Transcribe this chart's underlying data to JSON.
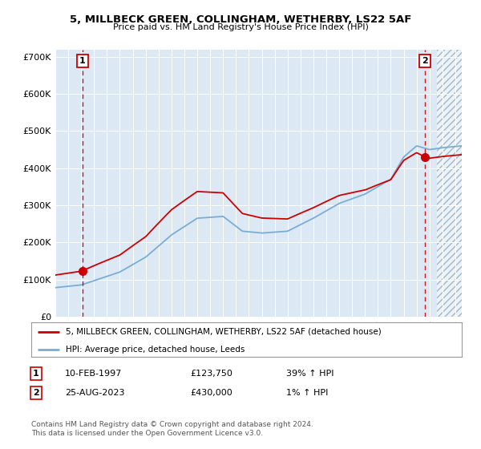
{
  "title": "5, MILLBECK GREEN, COLLINGHAM, WETHERBY, LS22 5AF",
  "subtitle": "Price paid vs. HM Land Registry's House Price Index (HPI)",
  "bg_color": "#dce9f5",
  "red_line_color": "#cc0000",
  "blue_line_color": "#7aadd4",
  "sale1_date": 1997.11,
  "sale1_price": 123750,
  "sale1_label": "1",
  "sale2_date": 2023.65,
  "sale2_price": 430000,
  "sale2_label": "2",
  "xmin": 1995.0,
  "xmax": 2026.5,
  "ymin": 0,
  "ymax": 720000,
  "legend_line1": "5, MILLBECK GREEN, COLLINGHAM, WETHERBY, LS22 5AF (detached house)",
  "legend_line2": "HPI: Average price, detached house, Leeds",
  "table_row1": [
    "1",
    "10-FEB-1997",
    "£123,750",
    "39% ↑ HPI"
  ],
  "table_row2": [
    "2",
    "25-AUG-2023",
    "£430,000",
    "1% ↑ HPI"
  ],
  "footer": "Contains HM Land Registry data © Crown copyright and database right 2024.\nThis data is licensed under the Open Government Licence v3.0.",
  "yticks": [
    0,
    100000,
    200000,
    300000,
    400000,
    500000,
    600000,
    700000
  ],
  "ytick_labels": [
    "£0",
    "£100K",
    "£200K",
    "£300K",
    "£400K",
    "£500K",
    "£600K",
    "£700K"
  ],
  "hpi_breakpoints": [
    [
      1995.0,
      78000
    ],
    [
      1997.0,
      85000
    ],
    [
      2000.0,
      120000
    ],
    [
      2002.0,
      160000
    ],
    [
      2004.0,
      220000
    ],
    [
      2006.0,
      265000
    ],
    [
      2008.0,
      270000
    ],
    [
      2009.5,
      230000
    ],
    [
      2011.0,
      225000
    ],
    [
      2013.0,
      230000
    ],
    [
      2015.0,
      265000
    ],
    [
      2017.0,
      305000
    ],
    [
      2019.0,
      330000
    ],
    [
      2021.0,
      370000
    ],
    [
      2022.0,
      430000
    ],
    [
      2023.0,
      460000
    ],
    [
      2024.0,
      450000
    ],
    [
      2025.0,
      455000
    ],
    [
      2026.5,
      460000
    ]
  ]
}
